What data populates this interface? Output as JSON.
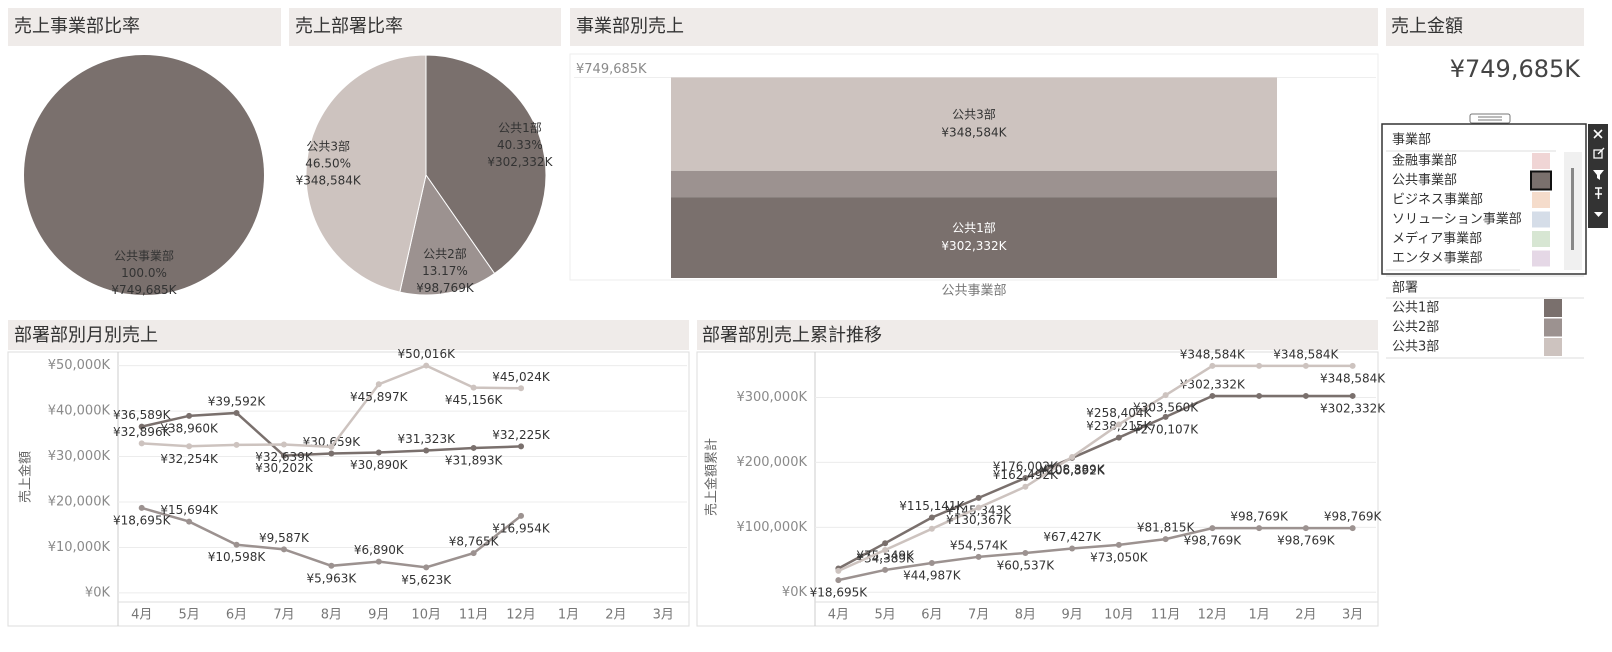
{
  "chart_data": [
    {
      "type": "pie",
      "title": "売上事業部比率",
      "categories": [
        "公共事業部"
      ],
      "values": [
        100.0
      ],
      "value_labels": [
        "100.0%"
      ],
      "amounts": [
        749685
      ],
      "amount_labels": [
        "¥749,685K"
      ],
      "colors": [
        "#7a706d"
      ]
    },
    {
      "type": "pie",
      "title": "売上部署比率",
      "categories": [
        "公共1部",
        "公共2部",
        "公共3部"
      ],
      "values": [
        40.33,
        13.17,
        46.5
      ],
      "value_labels": [
        "40.33%",
        "13.17%",
        "46.50%"
      ],
      "amounts": [
        302332,
        98769,
        348584
      ],
      "amount_labels": [
        "¥302,332K",
        "¥98,769K",
        "¥348,584K"
      ],
      "colors": [
        "#7a706d",
        "#9c9290",
        "#cdc3bf"
      ]
    },
    {
      "type": "bar",
      "stacked": true,
      "title": "事業部別売上",
      "categories": [
        "公共事業部"
      ],
      "series": [
        {
          "name": "公共1部",
          "color": "#7a706d",
          "values": [
            302332
          ],
          "value_labels": [
            "¥302,332K"
          ]
        },
        {
          "name": "公共2部",
          "color": "#9c9290",
          "values": [
            98769
          ]
        },
        {
          "name": "公共3部",
          "color": "#cdc3bf",
          "values": [
            348584
          ],
          "value_labels": [
            "¥348,584K"
          ]
        }
      ],
      "ylim": [
        0,
        800000
      ],
      "yticks": [
        {
          "value": 749685,
          "label": "¥749,685K"
        }
      ],
      "grid": true
    },
    {
      "type": "line",
      "title": "部署部別月別売上",
      "y_label": "売上金額",
      "categories": [
        "4月",
        "5月",
        "6月",
        "7月",
        "8月",
        "9月",
        "10月",
        "11月",
        "12月",
        "1月",
        "2月",
        "3月"
      ],
      "series": [
        {
          "color": "#7a706d",
          "values": [
            36589,
            38960,
            39592,
            30202,
            30659,
            30890,
            31323,
            31893,
            32225,
            null,
            null,
            null
          ],
          "value_labels": [
            "¥36,589K",
            "¥38,960K",
            "¥39,592K",
            "¥30,202K",
            "¥30,659K",
            "¥30,890K",
            "¥31,323K",
            "¥31,893K",
            "¥32,225K",
            null,
            null,
            null
          ]
        },
        {
          "color": "#9c9290",
          "values": [
            18695,
            15694,
            10598,
            9587,
            5963,
            6890,
            5623,
            8765,
            16954,
            null,
            null,
            null
          ],
          "value_labels": [
            "¥18,695K",
            "¥15,694K",
            "¥10,598K",
            "¥9,587K",
            "¥5,963K",
            "¥6,890K",
            "¥5,623K",
            "¥8,765K",
            "¥16,954K",
            null,
            null,
            null
          ]
        },
        {
          "color": "#cdc3bf",
          "values": [
            32896,
            32254,
            32578,
            32639,
            32125,
            45897,
            50016,
            45156,
            45024,
            null,
            null,
            null
          ],
          "value_labels": [
            "¥32,896K",
            "¥32,254K",
            null,
            "¥32,639K",
            null,
            "¥45,897K",
            "¥50,016K",
            "¥45,156K",
            "¥45,024K",
            null,
            null,
            null
          ]
        }
      ],
      "ylim": [
        -2000,
        53000
      ],
      "yticks": [
        {
          "value": 0,
          "label": "¥0K"
        },
        {
          "value": 10000,
          "label": "¥10,000K"
        },
        {
          "value": 20000,
          "label": "¥20,000K"
        },
        {
          "value": 30000,
          "label": "¥30,000K"
        },
        {
          "value": 40000,
          "label": "¥40,000K"
        },
        {
          "value": 50000,
          "label": "¥50,000K"
        }
      ],
      "grid": true
    },
    {
      "type": "line",
      "title": "部署部別売上累計推移",
      "y_label": "売上金額累計",
      "categories": [
        "4月",
        "5月",
        "6月",
        "7月",
        "8月",
        "9月",
        "10月",
        "11月",
        "12月",
        "1月",
        "2月",
        "3月"
      ],
      "series": [
        {
          "color": "#7a706d",
          "values": [
            36589,
            75549,
            115141,
            145343,
            176002,
            206892,
            238215,
            270107,
            302332,
            302332,
            302332,
            302332
          ],
          "value_labels": [
            null,
            "¥75,549K",
            "¥115,141K",
            "¥145,343K",
            "¥176,002K",
            "¥206,892K",
            "¥238,215K",
            "¥270,107K",
            "¥302,332K",
            null,
            null,
            "¥302,332K"
          ]
        },
        {
          "color": "#9c9290",
          "values": [
            18695,
            34389,
            44987,
            54574,
            60537,
            67427,
            73050,
            81815,
            98769,
            98769,
            98769,
            98769
          ],
          "value_labels": [
            "¥18,695K",
            "¥34,389K",
            "¥44,987K",
            "¥54,574K",
            "¥60,537K",
            "¥67,427K",
            "¥73,050K",
            "¥81,815K",
            "¥98,769K",
            "¥98,769K",
            "¥98,769K",
            "¥98,769K"
          ]
        },
        {
          "color": "#cdc3bf",
          "values": [
            32896,
            65150,
            97728,
            130367,
            162492,
            208389,
            258404,
            303560,
            348584,
            348584,
            348584,
            348584
          ],
          "value_labels": [
            null,
            null,
            null,
            "¥130,367K",
            "¥162,492K",
            "¥208,389K",
            "¥258,404K",
            "¥303,560K",
            "¥348,584K",
            null,
            "¥348,584K",
            "¥348,584K"
          ]
        }
      ],
      "ylim": [
        -15000,
        370000
      ],
      "yticks": [
        {
          "value": 0,
          "label": "¥0K"
        },
        {
          "value": 100000,
          "label": "¥100,000K"
        },
        {
          "value": 200000,
          "label": "¥200,000K"
        },
        {
          "value": 300000,
          "label": "¥300,000K"
        }
      ],
      "grid": true
    }
  ],
  "kpi": {
    "title": "売上金額",
    "value": "¥749,685K"
  },
  "filter": {
    "title": "事業部",
    "selected": "公共事業部",
    "items": [
      {
        "name": "金融事業部",
        "color": "#f0d5d5"
      },
      {
        "name": "公共事業部",
        "color": "#7a706d"
      },
      {
        "name": "ビジネス事業部",
        "color": "#f5dccb"
      },
      {
        "name": "ソリューション事業部",
        "color": "#d5dde8"
      },
      {
        "name": "メディア事業部",
        "color": "#d7e6d3"
      },
      {
        "name": "エンタメ事業部",
        "color": "#e5d8e6"
      }
    ]
  },
  "legend": {
    "title": "部署"
  }
}
